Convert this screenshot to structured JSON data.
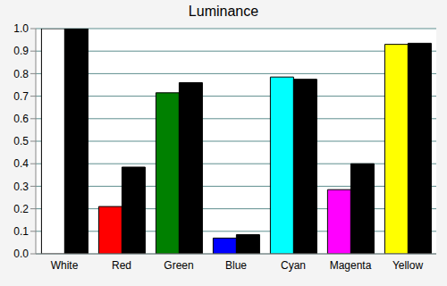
{
  "chart_data": {
    "type": "bar",
    "title": "Luminance",
    "categories": [
      "White",
      "Red",
      "Green",
      "Blue",
      "Cyan",
      "Magenta",
      "Yellow"
    ],
    "series": [
      {
        "colors": [
          "#ffffff",
          "#ff0000",
          "#008000",
          "#0000ff",
          "#00ffff",
          "#ff00ff",
          "#ffff00"
        ],
        "values": [
          1.0,
          0.21,
          0.715,
          0.07,
          0.785,
          0.285,
          0.93
        ]
      },
      {
        "color": "#000000",
        "values": [
          1.0,
          0.385,
          0.76,
          0.085,
          0.775,
          0.4,
          0.935
        ]
      }
    ],
    "ylim": [
      0,
      1
    ],
    "yticks": [
      {
        "value": 0,
        "label": "0.0"
      },
      0.1,
      0.2,
      0.3,
      0.4,
      0.5,
      0.6,
      0.7,
      0.8,
      0.9,
      {
        "value": 1,
        "label": "1.0"
      }
    ],
    "grid": true
  }
}
